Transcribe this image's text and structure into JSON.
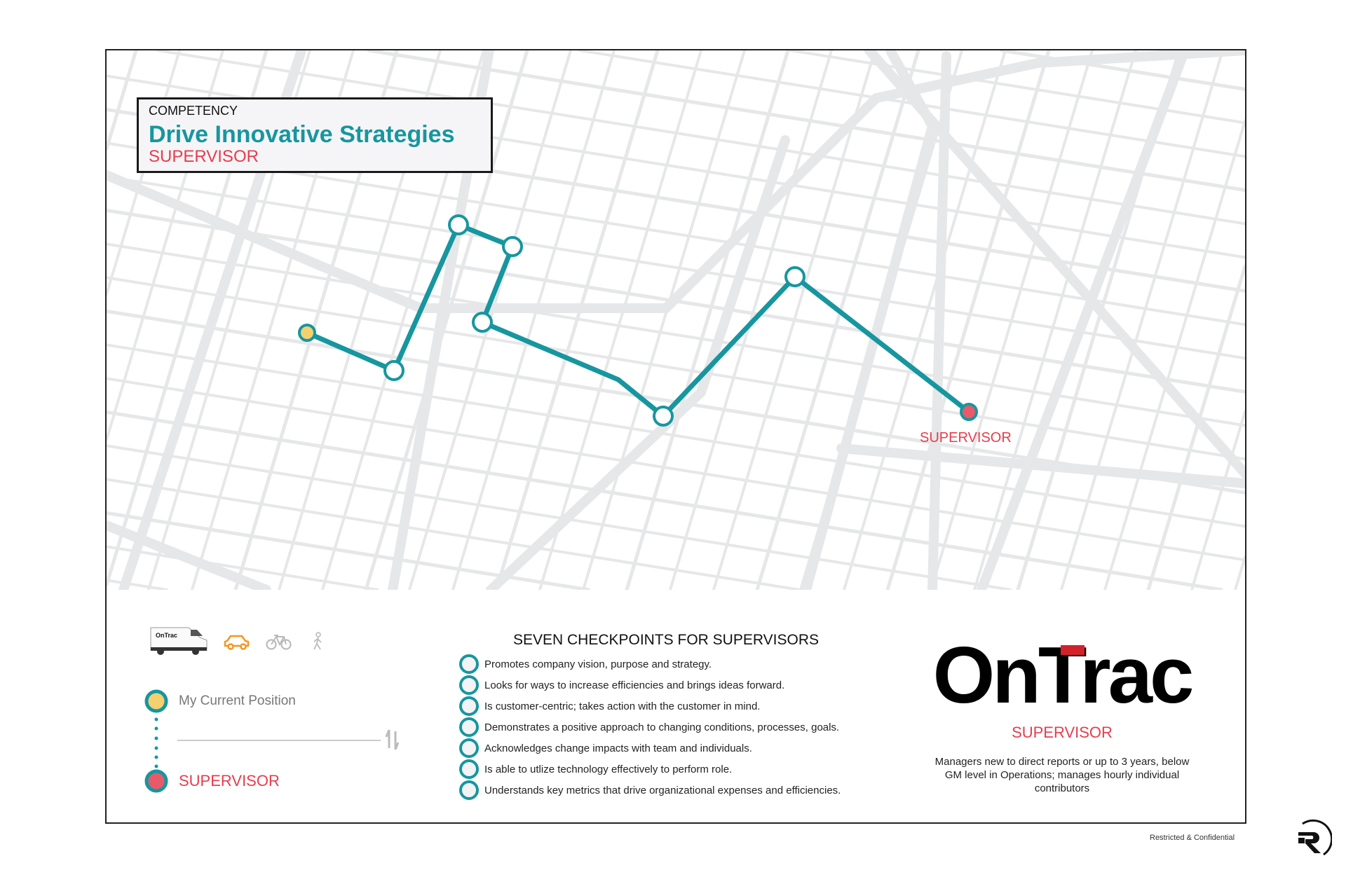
{
  "header": {
    "label": "COMPETENCY",
    "competency": "Drive Innovative Strategies",
    "role": "SUPERVISOR"
  },
  "map": {
    "destination_label": "SUPERVISOR",
    "route_color": "#17969f",
    "current_color": "#f4d06f",
    "destination_color": "#e85a6a",
    "road_color": "#e6e7e8"
  },
  "legend": {
    "transport_modes": [
      {
        "icon": "van-icon",
        "label": "OnTrac",
        "selected": false
      },
      {
        "icon": "car-icon",
        "selected": true,
        "color": "#f7941d"
      },
      {
        "icon": "bike-icon",
        "selected": false
      },
      {
        "icon": "walk-icon",
        "selected": false
      }
    ],
    "current_position": "My Current Position",
    "destination": "SUPERVISOR"
  },
  "checkpoints": {
    "title": "SEVEN CHECKPOINTS FOR SUPERVISORS",
    "items": [
      "Promotes company vision, purpose and strategy.",
      "Looks for ways to increase efficiencies and brings ideas forward.",
      "Is customer-centric; takes action with the customer in mind.",
      "Demonstrates a positive approach to changing conditions, processes, goals.",
      "Acknowledges change impacts with team and individuals.",
      "Is able to utlize technology effectively to perform role.",
      "Understands key metrics that drive organizational expenses and efficiencies."
    ]
  },
  "brand": {
    "logo": "OnTrac",
    "role": "SUPERVISOR",
    "description": "Managers new to direct reports or up to 3 years, below GM level in Operations; manages hourly individual contributors",
    "accent": "#d2232a"
  },
  "footer": {
    "confidentiality": "Restricted & Confidential"
  }
}
